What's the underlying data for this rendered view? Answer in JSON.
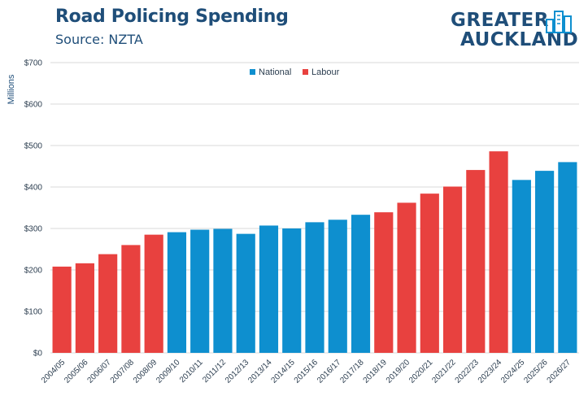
{
  "header": {
    "title": "Road Policing Spending",
    "subtitle": "Source: NZTA"
  },
  "logo": {
    "line1": "GREATER",
    "line2": "AUCKLAND",
    "color": "#1f4e79",
    "icon": "city-buildings-icon"
  },
  "chart_data": {
    "type": "bar",
    "ylabel": "Millions",
    "ylim": [
      0,
      700
    ],
    "yticks": [
      "$0",
      "$100",
      "$200",
      "$300",
      "$400",
      "$500",
      "$600",
      "$700"
    ],
    "grid": true,
    "legend_position": "top-center",
    "categories": [
      "2004/05",
      "2005/06",
      "2006/07",
      "2007/08",
      "2008/09",
      "2009/10",
      "2010/11",
      "2011/12",
      "2012/13",
      "2013/14",
      "2014/15",
      "2015/16",
      "2016/17",
      "2017/18",
      "2018/19",
      "2019/20",
      "2020/21",
      "2021/22",
      "2022/23",
      "2023/24",
      "2024/25",
      "2025/26",
      "2026/27"
    ],
    "values": [
      208,
      216,
      238,
      260,
      285,
      291,
      297,
      299,
      287,
      307,
      300,
      315,
      321,
      333,
      339,
      362,
      384,
      401,
      441,
      486,
      417,
      439,
      460
    ],
    "groups": [
      "Labour",
      "Labour",
      "Labour",
      "Labour",
      "Labour",
      "National",
      "National",
      "National",
      "National",
      "National",
      "National",
      "National",
      "National",
      "National",
      "Labour",
      "Labour",
      "Labour",
      "Labour",
      "Labour",
      "Labour",
      "National",
      "National",
      "National"
    ],
    "legend": [
      {
        "name": "National",
        "color": "#0e8fcf"
      },
      {
        "name": "Labour",
        "color": "#e8413f"
      }
    ]
  }
}
